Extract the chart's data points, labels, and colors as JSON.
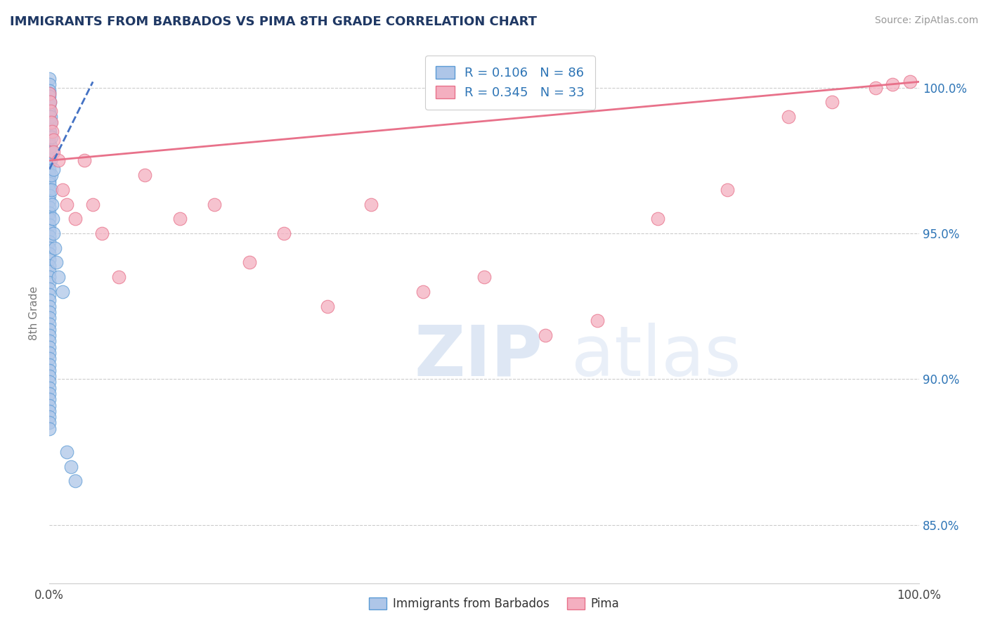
{
  "title": "IMMIGRANTS FROM BARBADOS VS PIMA 8TH GRADE CORRELATION CHART",
  "source": "Source: ZipAtlas.com",
  "ylabel": "8th Grade",
  "xmin": 0.0,
  "xmax": 100.0,
  "ymin": 83.0,
  "ymax": 101.5,
  "yticks": [
    85.0,
    90.0,
    95.0,
    100.0
  ],
  "ytick_labels": [
    "85.0%",
    "90.0%",
    "95.0%",
    "100.0%"
  ],
  "blue_R": 0.106,
  "blue_N": 86,
  "pink_R": 0.345,
  "pink_N": 33,
  "blue_color": "#aec6e8",
  "pink_color": "#f4afc0",
  "blue_edge_color": "#5b9bd5",
  "pink_edge_color": "#e8718a",
  "blue_line_color": "#4472c4",
  "pink_line_color": "#e8718a",
  "legend_text_color": "#2e75b6",
  "title_color": "#1f3864",
  "source_color": "#999999",
  "right_tick_color": "#2e75b6",
  "background_color": "#ffffff",
  "blue_dots_x": [
    0.0,
    0.0,
    0.0,
    0.0,
    0.0,
    0.0,
    0.0,
    0.0,
    0.0,
    0.0,
    0.0,
    0.0,
    0.0,
    0.0,
    0.0,
    0.0,
    0.0,
    0.0,
    0.0,
    0.0,
    0.0,
    0.0,
    0.0,
    0.0,
    0.0,
    0.0,
    0.0,
    0.0,
    0.0,
    0.0,
    0.0,
    0.0,
    0.0,
    0.0,
    0.0,
    0.0,
    0.0,
    0.0,
    0.0,
    0.0,
    0.0,
    0.0,
    0.0,
    0.0,
    0.0,
    0.0,
    0.0,
    0.0,
    0.0,
    0.0,
    0.0,
    0.0,
    0.0,
    0.0,
    0.0,
    0.0,
    0.0,
    0.0,
    0.0,
    0.0,
    0.0,
    0.0,
    0.0,
    0.0,
    0.0,
    0.05,
    0.1,
    0.15,
    0.2,
    0.25,
    0.3,
    0.4,
    0.5,
    0.6,
    0.8,
    1.0,
    1.5,
    2.0,
    2.5,
    3.0,
    0.05,
    0.1,
    0.15,
    0.2,
    0.3,
    0.5
  ],
  "blue_dots_y": [
    100.3,
    100.1,
    99.9,
    99.8,
    99.7,
    99.5,
    99.4,
    99.2,
    99.1,
    99.0,
    98.8,
    98.6,
    98.5,
    98.3,
    98.1,
    97.9,
    97.8,
    97.6,
    97.4,
    97.2,
    97.0,
    96.8,
    96.7,
    96.5,
    96.3,
    96.1,
    95.9,
    95.7,
    95.5,
    95.3,
    95.1,
    94.9,
    94.7,
    94.5,
    94.3,
    94.1,
    93.9,
    93.7,
    93.5,
    93.3,
    93.1,
    92.9,
    92.7,
    92.5,
    92.3,
    92.1,
    91.9,
    91.7,
    91.5,
    91.3,
    91.1,
    90.9,
    90.7,
    90.5,
    90.3,
    90.1,
    89.9,
    89.7,
    89.5,
    89.3,
    89.1,
    88.9,
    88.7,
    88.5,
    88.3,
    98.5,
    98.0,
    97.5,
    97.0,
    96.5,
    96.0,
    95.5,
    95.0,
    94.5,
    94.0,
    93.5,
    93.0,
    87.5,
    87.0,
    86.5,
    99.5,
    99.0,
    98.8,
    98.3,
    97.8,
    97.2
  ],
  "pink_dots_x": [
    0.0,
    0.05,
    0.1,
    0.2,
    0.3,
    0.5,
    0.5,
    1.0,
    1.5,
    2.0,
    3.0,
    4.0,
    5.0,
    6.0,
    8.0,
    11.0,
    15.0,
    19.0,
    23.0,
    27.0,
    32.0,
    37.0,
    43.0,
    50.0,
    57.0,
    63.0,
    70.0,
    78.0,
    85.0,
    90.0,
    95.0,
    97.0,
    99.0
  ],
  "pink_dots_y": [
    99.8,
    99.5,
    99.2,
    98.8,
    98.5,
    98.2,
    97.8,
    97.5,
    96.5,
    96.0,
    95.5,
    97.5,
    96.0,
    95.0,
    93.5,
    97.0,
    95.5,
    96.0,
    94.0,
    95.0,
    92.5,
    96.0,
    93.0,
    93.5,
    91.5,
    92.0,
    95.5,
    96.5,
    99.0,
    99.5,
    100.0,
    100.1,
    100.2
  ],
  "blue_trendline_x": [
    0.0,
    5.0
  ],
  "blue_trendline_y": [
    97.2,
    100.2
  ],
  "pink_trendline_x": [
    0.0,
    100.0
  ],
  "pink_trendline_y": [
    97.5,
    100.2
  ]
}
